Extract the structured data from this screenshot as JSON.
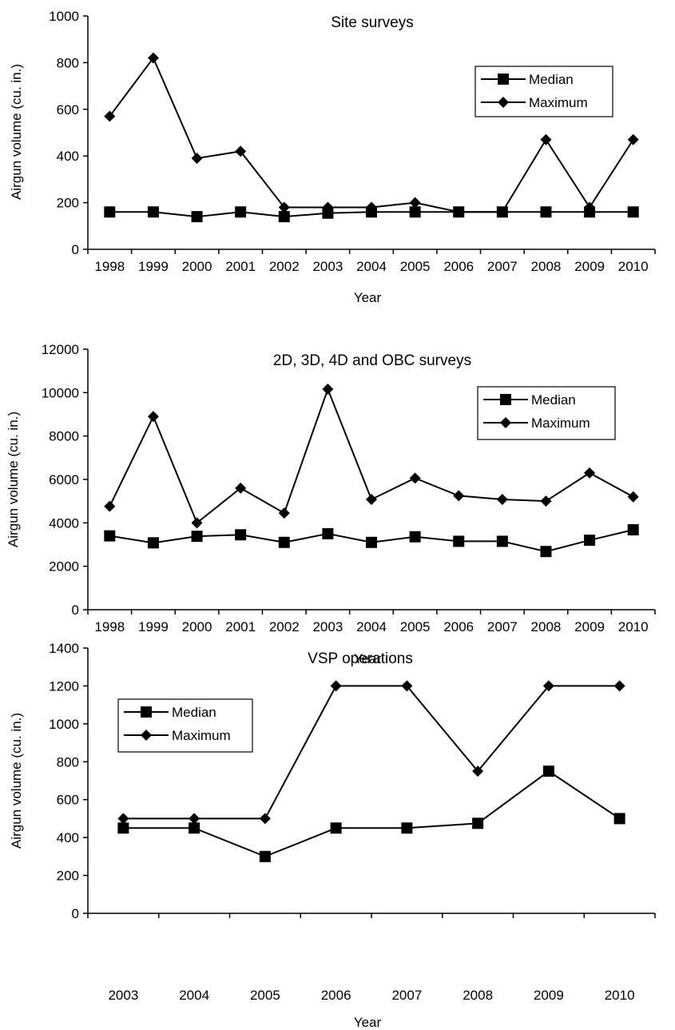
{
  "chart_data": [
    {
      "type": "line",
      "title": "Site surveys",
      "xlabel": "Year",
      "ylabel": "Airgun volume (cu. in.)",
      "ylim": [
        0,
        1000
      ],
      "yticks": [
        0,
        200,
        400,
        600,
        800,
        1000
      ],
      "categories": [
        "1998",
        "1999",
        "2000",
        "2001",
        "2002",
        "2003",
        "2004",
        "2005",
        "2006",
        "2007",
        "2008",
        "2009",
        "2010"
      ],
      "legend_position": "top-right",
      "series": [
        {
          "name": "Median",
          "marker": "square",
          "values": [
            160,
            160,
            140,
            160,
            140,
            155,
            160,
            160,
            160,
            160,
            160,
            160,
            160
          ]
        },
        {
          "name": "Maximum",
          "marker": "diamond",
          "values": [
            570,
            820,
            390,
            420,
            180,
            180,
            180,
            200,
            160,
            160,
            470,
            180,
            470
          ]
        }
      ]
    },
    {
      "type": "line",
      "title": "2D, 3D, 4D and OBC surveys",
      "xlabel": "Year",
      "ylabel": "Airgun volume (cu. in.)",
      "ylim": [
        0,
        12000
      ],
      "yticks": [
        0,
        2000,
        4000,
        6000,
        8000,
        10000,
        12000
      ],
      "categories": [
        "1998",
        "1999",
        "2000",
        "2001",
        "2002",
        "2003",
        "2004",
        "2005",
        "2006",
        "2007",
        "2008",
        "2009",
        "2010"
      ],
      "legend_position": "top-right",
      "series": [
        {
          "name": "Median",
          "marker": "square",
          "values": [
            3400,
            3080,
            3380,
            3450,
            3100,
            3500,
            3100,
            3360,
            3150,
            3150,
            2680,
            3200,
            3680
          ]
        },
        {
          "name": "Maximum",
          "marker": "diamond",
          "values": [
            4760,
            8900,
            4000,
            5600,
            4450,
            10160,
            5080,
            6060,
            5250,
            5080,
            5000,
            6300,
            5200
          ]
        }
      ]
    },
    {
      "type": "line",
      "title": "VSP operations",
      "xlabel": "Year",
      "ylabel": "Airgun volume (cu. in.)",
      "ylim": [
        0,
        1400
      ],
      "yticks": [
        0,
        200,
        400,
        600,
        800,
        1000,
        1200,
        1400
      ],
      "categories": [
        "2003",
        "2004",
        "2005",
        "2006",
        "2007",
        "2008",
        "2009",
        "2010"
      ],
      "legend_position": "top-left",
      "series": [
        {
          "name": "Median",
          "marker": "square",
          "values": [
            450,
            450,
            300,
            450,
            450,
            475,
            750,
            500
          ]
        },
        {
          "name": "Maximum",
          "marker": "diamond",
          "values": [
            500,
            500,
            500,
            1200,
            1200,
            750,
            1200,
            1200
          ]
        }
      ]
    }
  ]
}
